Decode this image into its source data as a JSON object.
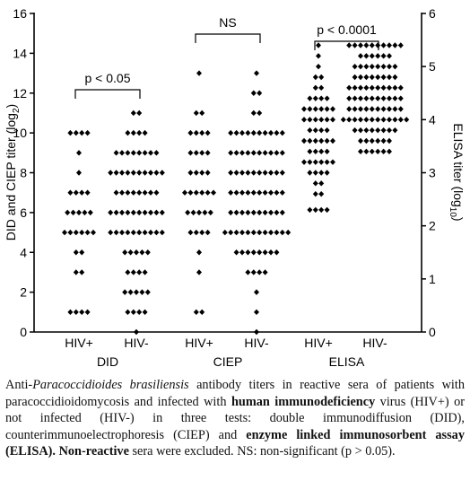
{
  "chart_data": {
    "type": "dotplot",
    "ylabel": {
      "text": "DID and CIEP titer (log",
      "sub": "2",
      "end": ")"
    },
    "y2label": {
      "text": "ELISA titer (log",
      "sub": "10",
      "end": ")"
    },
    "ylim": [
      0,
      16
    ],
    "yticks": [
      0,
      2,
      4,
      6,
      8,
      10,
      12,
      14,
      16
    ],
    "y2lim": [
      0,
      6
    ],
    "y2ticks": [
      0,
      1,
      2,
      3,
      4,
      5,
      6
    ],
    "marker_color": "#000000",
    "groups": [
      {
        "name": "DID",
        "annotation": "p < 0.05",
        "columns": [
          {
            "label": "HIV+",
            "values": [
              10,
              10,
              10,
              10,
              9,
              8,
              7,
              7,
              7,
              7,
              6,
              6,
              6,
              6,
              6,
              5,
              5,
              5,
              5,
              5,
              5,
              4,
              4,
              3,
              3,
              1,
              1,
              1,
              1
            ]
          },
          {
            "label": "HIV-",
            "values": [
              11,
              11,
              10,
              10,
              10,
              10,
              9,
              9,
              9,
              9,
              9,
              9,
              9,
              9,
              8,
              8,
              8,
              8,
              8,
              8,
              8,
              8,
              8,
              8,
              7,
              7,
              7,
              7,
              7,
              7,
              7,
              7,
              6,
              6,
              6,
              6,
              6,
              6,
              6,
              6,
              6,
              6,
              5,
              5,
              5,
              5,
              5,
              5,
              5,
              5,
              5,
              5,
              4,
              4,
              4,
              4,
              4,
              3,
              3,
              3,
              3,
              2,
              2,
              2,
              2,
              2,
              1,
              1,
              1,
              1,
              0
            ]
          }
        ]
      },
      {
        "name": "CIEP",
        "annotation": "NS",
        "columns": [
          {
            "label": "HIV+",
            "values": [
              13,
              11,
              11,
              10,
              10,
              10,
              10,
              9,
              9,
              9,
              9,
              8,
              8,
              8,
              8,
              7,
              7,
              7,
              7,
              7,
              7,
              6,
              6,
              6,
              6,
              6,
              5,
              5,
              5,
              5,
              4,
              3,
              1,
              1
            ]
          },
          {
            "label": "HIV-",
            "values": [
              13,
              12,
              12,
              11,
              11,
              10,
              10,
              10,
              10,
              10,
              10,
              10,
              10,
              10,
              10,
              9,
              9,
              9,
              9,
              9,
              9,
              9,
              9,
              9,
              9,
              8,
              8,
              8,
              8,
              8,
              8,
              8,
              8,
              8,
              8,
              7,
              7,
              7,
              7,
              7,
              7,
              7,
              7,
              7,
              7,
              6,
              6,
              6,
              6,
              6,
              6,
              6,
              6,
              6,
              6,
              5,
              5,
              5,
              5,
              5,
              5,
              5,
              5,
              5,
              5,
              5,
              5,
              4,
              4,
              4,
              4,
              4,
              4,
              4,
              4,
              3,
              3,
              3,
              3,
              2,
              1,
              0
            ]
          }
        ]
      },
      {
        "name": "ELISA",
        "annotation": "p < 0.0001",
        "axis": "y2",
        "columns": [
          {
            "label": "HIV+",
            "values": [
              5.4,
              5.2,
              5.0,
              4.8,
              4.8,
              4.6,
              4.6,
              4.4,
              4.4,
              4.4,
              4.4,
              4.2,
              4.2,
              4.2,
              4.2,
              4.2,
              4.2,
              4.0,
              4.0,
              4.0,
              4.0,
              4.0,
              4.0,
              3.8,
              3.8,
              3.8,
              3.8,
              3.6,
              3.6,
              3.6,
              3.6,
              3.6,
              3.6,
              3.4,
              3.4,
              3.4,
              3.4,
              3.2,
              3.2,
              3.2,
              3.2,
              3.2,
              3.2,
              3.0,
              3.0,
              3.0,
              3.0,
              2.8,
              2.8,
              2.6,
              2.6,
              2.3,
              2.3,
              2.3,
              2.3
            ]
          },
          {
            "label": "HIV-",
            "values": [
              5.4,
              5.4,
              5.4,
              5.4,
              5.4,
              5.4,
              5.4,
              5.4,
              5.4,
              5.4,
              5.2,
              5.2,
              5.2,
              5.2,
              5.2,
              5.2,
              5.0,
              5.0,
              5.0,
              5.0,
              5.0,
              5.0,
              5.0,
              5.0,
              4.8,
              4.8,
              4.8,
              4.8,
              4.8,
              4.8,
              4.8,
              4.8,
              4.6,
              4.6,
              4.6,
              4.6,
              4.6,
              4.6,
              4.6,
              4.6,
              4.6,
              4.6,
              4.4,
              4.4,
              4.4,
              4.4,
              4.4,
              4.4,
              4.4,
              4.4,
              4.4,
              4.4,
              4.2,
              4.2,
              4.2,
              4.2,
              4.2,
              4.2,
              4.2,
              4.2,
              4.2,
              4.2,
              4.0,
              4.0,
              4.0,
              4.0,
              4.0,
              4.0,
              4.0,
              4.0,
              4.0,
              4.0,
              4.0,
              4.0,
              3.8,
              3.8,
              3.8,
              3.8,
              3.8,
              3.8,
              3.8,
              3.8,
              3.6,
              3.6,
              3.6,
              3.6,
              3.6,
              3.6,
              3.4,
              3.4,
              3.4,
              3.4,
              3.4,
              3.4
            ]
          }
        ]
      }
    ]
  },
  "caption": [
    {
      "text": "Anti-"
    },
    {
      "text": "Paracoccidioides brasiliensis",
      "style": "italic"
    },
    {
      "text": " antibody titers in reactive sera of patients with paracoccidioidomycosis and infected with "
    },
    {
      "text": "human immunodeficiency",
      "style": "bold"
    },
    {
      "text": " virus (HIV+) or not infected (HIV-) in three tests: double immunodiffusion (DID), counterimmunoelectrophoresis (CIEP) and "
    },
    {
      "text": "enzyme linked immunosorbent assay (ELISA). Non-reactive",
      "style": "bold"
    },
    {
      "text": " sera were excluded. NS: non-significant (p > 0.05)."
    }
  ]
}
